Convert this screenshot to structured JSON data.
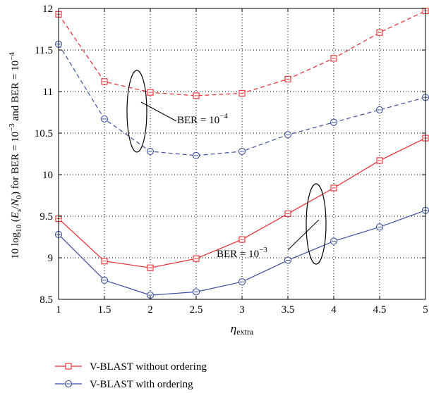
{
  "chart_data": {
    "type": "line",
    "title": "",
    "xlabel_sym": "η",
    "xlabel_sub": "extra",
    "ylabel": {
      "p1": "10 log",
      "p1_sub": "10",
      "p2": " (",
      "p3": "E",
      "p3_sub": "s",
      "p4": "/",
      "p5": "N",
      "p5_sub": "0",
      "p6": ") for BER = 10",
      "p6_sup": "−3",
      "p7": " and BER = 10",
      "p7_sup": "−4"
    },
    "x": [
      1,
      1.5,
      2,
      2.5,
      3,
      3.5,
      4,
      4.5,
      5
    ],
    "xlim": [
      1,
      5
    ],
    "ylim": [
      8.5,
      12
    ],
    "xticks": [
      "1",
      "1.5",
      "2",
      "2.5",
      "3",
      "3.5",
      "4",
      "4.5",
      "5"
    ],
    "yticks": [
      "8.5",
      "9",
      "9.5",
      "10",
      "10.5",
      "11",
      "11.5",
      "12"
    ],
    "grid": true,
    "legend_position": "bottom",
    "series": [
      {
        "name": "V-BLAST without ordering",
        "ber": "1e-4",
        "style": "dashed",
        "marker": "square",
        "color": "#e8292f",
        "values": [
          11.93,
          11.12,
          10.99,
          10.95,
          10.98,
          11.15,
          11.4,
          11.71,
          11.97
        ]
      },
      {
        "name": "V-BLAST with ordering",
        "ber": "1e-4",
        "style": "dashed",
        "marker": "circle",
        "color": "#3a4fa0",
        "values": [
          11.57,
          10.67,
          10.28,
          10.23,
          10.28,
          10.48,
          10.63,
          10.78,
          10.93
        ]
      },
      {
        "name": "V-BLAST without ordering",
        "ber": "1e-3",
        "style": "solid",
        "marker": "square",
        "color": "#e8292f",
        "values": [
          9.47,
          8.96,
          8.88,
          8.99,
          9.22,
          9.53,
          9.84,
          10.17,
          10.44
        ]
      },
      {
        "name": "V-BLAST with ordering",
        "ber": "1e-3",
        "style": "solid",
        "marker": "circle",
        "color": "#3a4fa0",
        "values": [
          9.28,
          8.73,
          8.55,
          8.59,
          8.71,
          8.97,
          9.2,
          9.37,
          9.57
        ]
      }
    ],
    "annotations": [
      {
        "text": "BER = 10",
        "sup": "−4"
      },
      {
        "text": "BER = 10",
        "sup": "−3"
      }
    ],
    "legend": [
      {
        "label": "V-BLAST without ordering",
        "marker": "square",
        "color": "#e8292f"
      },
      {
        "label": "V-BLAST with ordering",
        "marker": "circle",
        "color": "#3a4fa0"
      }
    ]
  }
}
